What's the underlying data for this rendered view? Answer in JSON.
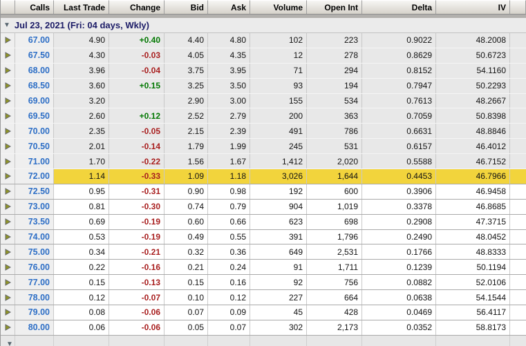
{
  "table": {
    "columns": [
      "Calls",
      "Last Trade",
      "Change",
      "Bid",
      "Ask",
      "Volume",
      "Open Int",
      "Delta",
      "IV"
    ],
    "group_label": "Jul 23, 2021 (Fri: 04 days, Wkly)",
    "icons": {
      "collapse_triangle": "down-triangle",
      "expand_arrow": "right-triangle"
    },
    "colors": {
      "highlight_row": "#f2d43c",
      "itm_row": "#e8e8e8",
      "otm_row": "#ffffff",
      "positive_change": "#007700",
      "negative_change": "#a81e1e",
      "strike_text": "#2e6fc6",
      "group_text": "#1b1b66",
      "arrow_icon": "#8f9426"
    },
    "rows": [
      {
        "strike": "67.00",
        "last": "4.90",
        "change": "+0.40",
        "bid": "4.40",
        "ask": "4.80",
        "volume": "102",
        "open_int": "223",
        "delta": "0.9022",
        "iv": "48.2008",
        "moneyness": "itm"
      },
      {
        "strike": "67.50",
        "last": "4.30",
        "change": "-0.03",
        "bid": "4.05",
        "ask": "4.35",
        "volume": "12",
        "open_int": "278",
        "delta": "0.8629",
        "iv": "50.6723",
        "moneyness": "itm"
      },
      {
        "strike": "68.00",
        "last": "3.96",
        "change": "-0.04",
        "bid": "3.75",
        "ask": "3.95",
        "volume": "71",
        "open_int": "294",
        "delta": "0.8152",
        "iv": "54.1160",
        "moneyness": "itm"
      },
      {
        "strike": "68.50",
        "last": "3.60",
        "change": "+0.15",
        "bid": "3.25",
        "ask": "3.50",
        "volume": "93",
        "open_int": "194",
        "delta": "0.7947",
        "iv": "50.2293",
        "moneyness": "itm"
      },
      {
        "strike": "69.00",
        "last": "3.20",
        "change": "",
        "bid": "2.90",
        "ask": "3.00",
        "volume": "155",
        "open_int": "534",
        "delta": "0.7613",
        "iv": "48.2667",
        "moneyness": "itm"
      },
      {
        "strike": "69.50",
        "last": "2.60",
        "change": "+0.12",
        "bid": "2.52",
        "ask": "2.79",
        "volume": "200",
        "open_int": "363",
        "delta": "0.7059",
        "iv": "50.8398",
        "moneyness": "itm"
      },
      {
        "strike": "70.00",
        "last": "2.35",
        "change": "-0.05",
        "bid": "2.15",
        "ask": "2.39",
        "volume": "491",
        "open_int": "786",
        "delta": "0.6631",
        "iv": "48.8846",
        "moneyness": "itm"
      },
      {
        "strike": "70.50",
        "last": "2.01",
        "change": "-0.14",
        "bid": "1.79",
        "ask": "1.99",
        "volume": "245",
        "open_int": "531",
        "delta": "0.6157",
        "iv": "46.4012",
        "moneyness": "itm"
      },
      {
        "strike": "71.00",
        "last": "1.70",
        "change": "-0.22",
        "bid": "1.56",
        "ask": "1.67",
        "volume": "1,412",
        "open_int": "2,020",
        "delta": "0.5588",
        "iv": "46.7152",
        "moneyness": "itm"
      },
      {
        "strike": "72.00",
        "last": "1.14",
        "change": "-0.33",
        "bid": "1.09",
        "ask": "1.18",
        "volume": "3,026",
        "open_int": "1,644",
        "delta": "0.4453",
        "iv": "46.7966",
        "moneyness": "atm"
      },
      {
        "strike": "72.50",
        "last": "0.95",
        "change": "-0.31",
        "bid": "0.90",
        "ask": "0.98",
        "volume": "192",
        "open_int": "600",
        "delta": "0.3906",
        "iv": "46.9458",
        "moneyness": "otm"
      },
      {
        "strike": "73.00",
        "last": "0.81",
        "change": "-0.30",
        "bid": "0.74",
        "ask": "0.79",
        "volume": "904",
        "open_int": "1,019",
        "delta": "0.3378",
        "iv": "46.8685",
        "moneyness": "otm"
      },
      {
        "strike": "73.50",
        "last": "0.69",
        "change": "-0.19",
        "bid": "0.60",
        "ask": "0.66",
        "volume": "623",
        "open_int": "698",
        "delta": "0.2908",
        "iv": "47.3715",
        "moneyness": "otm"
      },
      {
        "strike": "74.00",
        "last": "0.53",
        "change": "-0.19",
        "bid": "0.49",
        "ask": "0.55",
        "volume": "391",
        "open_int": "1,796",
        "delta": "0.2490",
        "iv": "48.0452",
        "moneyness": "otm"
      },
      {
        "strike": "75.00",
        "last": "0.34",
        "change": "-0.21",
        "bid": "0.32",
        "ask": "0.36",
        "volume": "649",
        "open_int": "2,531",
        "delta": "0.1766",
        "iv": "48.8333",
        "moneyness": "otm"
      },
      {
        "strike": "76.00",
        "last": "0.22",
        "change": "-0.16",
        "bid": "0.21",
        "ask": "0.24",
        "volume": "91",
        "open_int": "1,711",
        "delta": "0.1239",
        "iv": "50.1194",
        "moneyness": "otm"
      },
      {
        "strike": "77.00",
        "last": "0.15",
        "change": "-0.13",
        "bid": "0.15",
        "ask": "0.16",
        "volume": "92",
        "open_int": "756",
        "delta": "0.0882",
        "iv": "52.0106",
        "moneyness": "otm"
      },
      {
        "strike": "78.00",
        "last": "0.12",
        "change": "-0.07",
        "bid": "0.10",
        "ask": "0.12",
        "volume": "227",
        "open_int": "664",
        "delta": "0.0638",
        "iv": "54.1544",
        "moneyness": "otm"
      },
      {
        "strike": "79.00",
        "last": "0.08",
        "change": "-0.06",
        "bid": "0.07",
        "ask": "0.09",
        "volume": "45",
        "open_int": "428",
        "delta": "0.0469",
        "iv": "56.4117",
        "moneyness": "otm"
      },
      {
        "strike": "80.00",
        "last": "0.06",
        "change": "-0.06",
        "bid": "0.05",
        "ask": "0.07",
        "volume": "302",
        "open_int": "2,173",
        "delta": "0.0352",
        "iv": "58.8173",
        "moneyness": "otm"
      }
    ]
  }
}
